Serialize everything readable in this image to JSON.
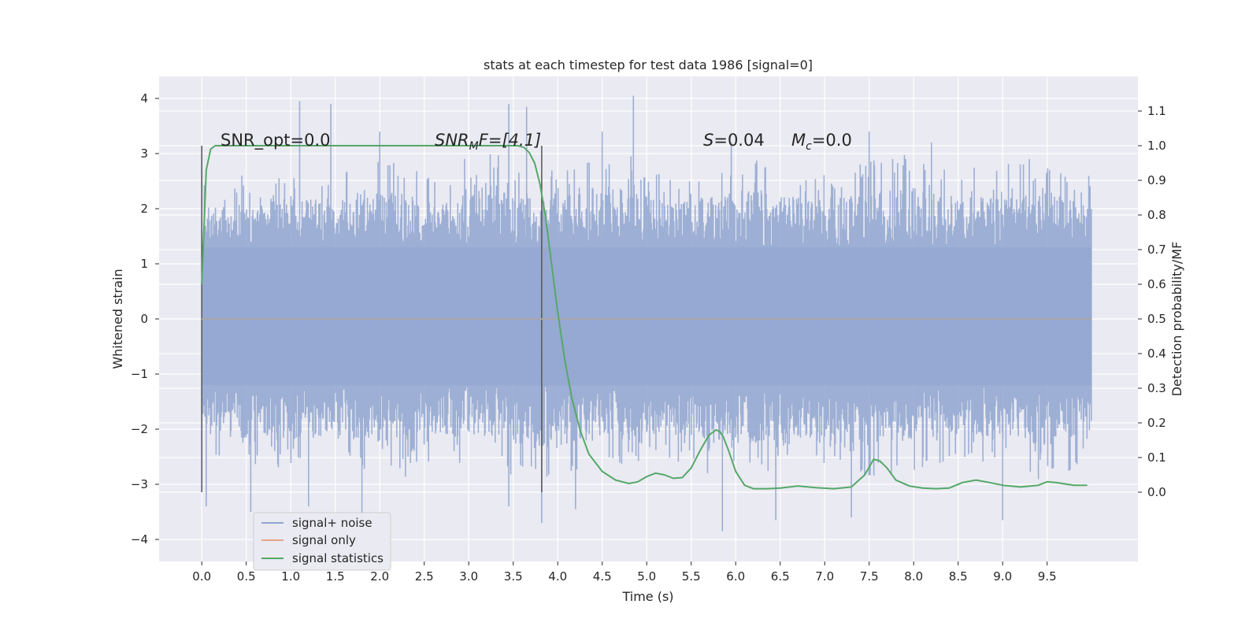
{
  "chart_data": {
    "type": "line",
    "title": "stats at each timestep for test data 1986 [signal=0]",
    "xlabel": "Time (s)",
    "ylabel_left": "Whitened strain",
    "ylabel_right": "Detection probability/MF",
    "xlim": [
      -0.48,
      10.52
    ],
    "ylim_left": [
      -4.4,
      4.4
    ],
    "ylim_right": [
      -0.2,
      1.2
    ],
    "grid": true,
    "x_ticks": [
      "0.0",
      "0.5",
      "1.0",
      "1.5",
      "2.0",
      "2.5",
      "3.0",
      "3.5",
      "4.0",
      "4.5",
      "5.0",
      "5.5",
      "6.0",
      "6.5",
      "7.0",
      "7.5",
      "8.0",
      "8.5",
      "9.0",
      "9.5"
    ],
    "x_tick_values": [
      0,
      0.5,
      1,
      1.5,
      2,
      2.5,
      3,
      3.5,
      4,
      4.5,
      5,
      5.5,
      6,
      6.5,
      7,
      7.5,
      8,
      8.5,
      9,
      9.5
    ],
    "y_left_ticks": [
      "4",
      "3",
      "2",
      "1",
      "0",
      "−1",
      "−2",
      "−3",
      "−4"
    ],
    "y_left_tick_values": [
      4,
      3,
      2,
      1,
      0,
      -1,
      -2,
      -3,
      -4
    ],
    "y_right_ticks": [
      "1.1",
      "1.0",
      "0.9",
      "0.8",
      "0.7",
      "0.6",
      "0.5",
      "0.4",
      "0.3",
      "0.2",
      "0.1",
      "0.0"
    ],
    "y_right_tick_values": [
      1.1,
      1.0,
      0.9,
      0.8,
      0.7,
      0.6,
      0.5,
      0.4,
      0.3,
      0.2,
      0.1,
      0.0
    ],
    "legend_position": "lower-left",
    "legend": [
      {
        "label": "signal+ noise",
        "color": "#8fa4cf"
      },
      {
        "label": "signal only",
        "color": "#e8a48b"
      },
      {
        "label": "signal statistics",
        "color": "#55a868"
      }
    ],
    "annotations": {
      "snr_opt": "SNR_opt=0.0",
      "snr_mf_main": "SNR",
      "snr_mf_sub": "M",
      "snr_mf_rest": "F=[4.1]",
      "s_main": "S",
      "s_rest": "=0.04",
      "mc_main": "M",
      "mc_sub": "c",
      "mc_rest": "=0.0"
    },
    "vertical_markers": [
      0.0,
      3.82
    ],
    "noise_series": {
      "name": "signal+ noise",
      "x_range": [
        0,
        10
      ],
      "envelope_pos": [
        2.3,
        2.2,
        2.5,
        2.4,
        2.6,
        2.3,
        2.8,
        2.4,
        2.5,
        2.7,
        2.3,
        2.5,
        2.6,
        2.4,
        2.5,
        2.7,
        2.4,
        2.6,
        2.5,
        2.4
      ],
      "envelope_neg": [
        -2.2,
        -2.4,
        -2.5,
        -2.3,
        -2.6,
        -2.4,
        -2.3,
        -2.7,
        -2.5,
        -2.4,
        -2.3,
        -2.6,
        -2.5,
        -2.4,
        -2.7,
        -2.5,
        -2.3,
        -2.4,
        -2.6,
        -2.3
      ],
      "peaks_pos": [
        [
          0.45,
          2.6
        ],
        [
          1.1,
          3.95
        ],
        [
          1.45,
          3.9
        ],
        [
          2.0,
          3.4
        ],
        [
          3.45,
          3.9
        ],
        [
          3.65,
          3.85
        ],
        [
          4.5,
          3.4
        ],
        [
          4.85,
          4.05
        ],
        [
          5.95,
          3.2
        ],
        [
          7.5,
          3.4
        ],
        [
          8.2,
          3.2
        ],
        [
          9.3,
          2.9
        ]
      ],
      "peaks_neg": [
        [
          0.05,
          -3.4
        ],
        [
          0.55,
          -3.5
        ],
        [
          1.2,
          -3.4
        ],
        [
          1.8,
          -3.6
        ],
        [
          3.45,
          -3.4
        ],
        [
          3.82,
          -3.7
        ],
        [
          4.2,
          -3.45
        ],
        [
          5.85,
          -3.85
        ],
        [
          6.45,
          -3.65
        ],
        [
          7.3,
          -3.6
        ],
        [
          9.0,
          -3.65
        ]
      ]
    },
    "statistics_series": {
      "name": "signal statistics",
      "axis": "right",
      "x": [
        0.0,
        0.05,
        0.1,
        0.15,
        0.3,
        0.6,
        1.0,
        1.5,
        2.0,
        2.5,
        3.0,
        3.4,
        3.55,
        3.62,
        3.68,
        3.74,
        3.8,
        3.86,
        3.92,
        4.0,
        4.08,
        4.16,
        4.25,
        4.35,
        4.5,
        4.65,
        4.8,
        4.9,
        5.0,
        5.1,
        5.2,
        5.3,
        5.4,
        5.5,
        5.6,
        5.7,
        5.78,
        5.82,
        5.86,
        5.92,
        6.0,
        6.1,
        6.2,
        6.35,
        6.5,
        6.7,
        6.9,
        7.1,
        7.3,
        7.45,
        7.55,
        7.62,
        7.7,
        7.8,
        7.95,
        8.1,
        8.25,
        8.4,
        8.55,
        8.7,
        8.85,
        9.0,
        9.2,
        9.4,
        9.5,
        9.6,
        9.8,
        9.95
      ],
      "y": [
        0.6,
        0.93,
        0.99,
        1.0,
        1.0,
        1.0,
        1.0,
        1.0,
        1.0,
        1.0,
        1.0,
        1.0,
        1.0,
        0.995,
        0.98,
        0.95,
        0.89,
        0.8,
        0.68,
        0.52,
        0.38,
        0.27,
        0.18,
        0.11,
        0.06,
        0.035,
        0.025,
        0.03,
        0.045,
        0.055,
        0.05,
        0.04,
        0.042,
        0.07,
        0.12,
        0.165,
        0.18,
        0.175,
        0.16,
        0.12,
        0.06,
        0.02,
        0.01,
        0.01,
        0.012,
        0.018,
        0.013,
        0.01,
        0.015,
        0.05,
        0.095,
        0.09,
        0.07,
        0.035,
        0.018,
        0.012,
        0.01,
        0.012,
        0.028,
        0.035,
        0.028,
        0.02,
        0.015,
        0.02,
        0.03,
        0.028,
        0.02,
        0.02
      ]
    },
    "signal_only_series": {
      "name": "signal only",
      "x": [
        0,
        10
      ],
      "y": [
        0,
        0
      ]
    }
  }
}
